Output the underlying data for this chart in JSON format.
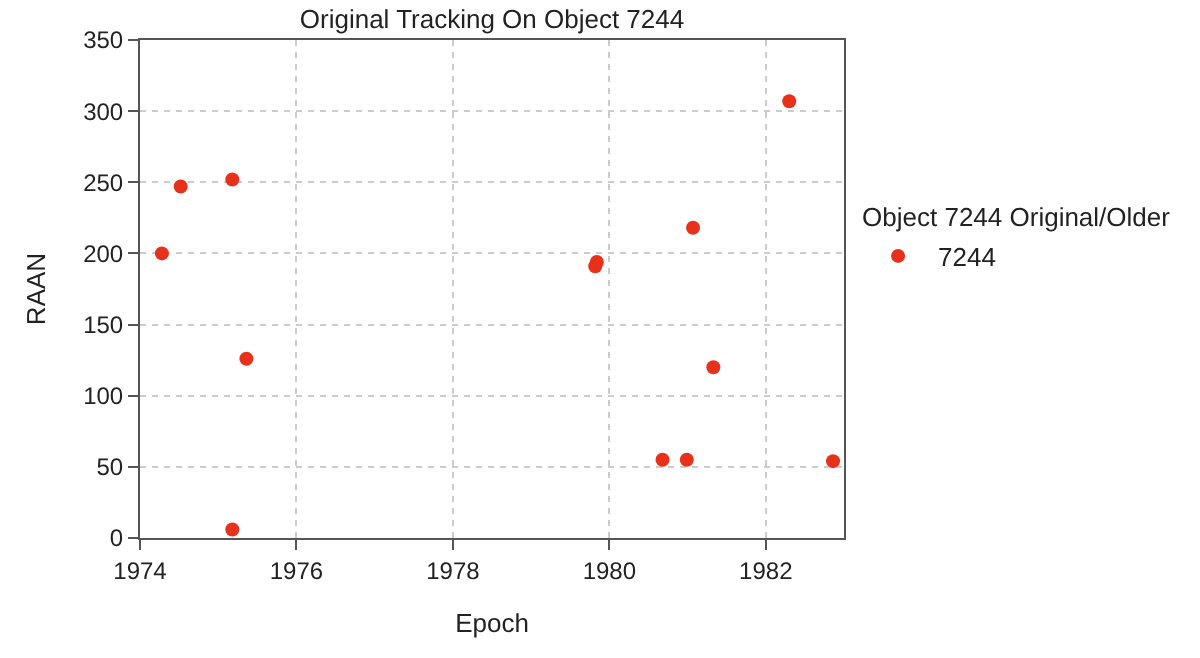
{
  "chart_data": {
    "type": "scatter",
    "title": "Original Tracking On Object 7244",
    "xlabel": "Epoch",
    "ylabel": "RAAN",
    "legend_title": "Object 7244 Original/Older",
    "x": [
      1974.28,
      1974.52,
      1975.18,
      1975.36,
      1975.18,
      1979.82,
      1979.84,
      1980.68,
      1980.99,
      1981.07,
      1981.33,
      1982.3,
      1982.86
    ],
    "series": [
      {
        "name": "7244",
        "color": "#e8311a",
        "values": [
          200,
          247,
          252,
          126,
          6,
          191,
          194,
          55,
          55,
          218,
          120,
          307,
          54
        ]
      }
    ],
    "xlim": [
      1974,
      1983
    ],
    "xticks": [
      1974,
      1976,
      1978,
      1980,
      1982
    ],
    "ylim": [
      0,
      350
    ],
    "yticks": [
      0,
      50,
      100,
      150,
      200,
      250,
      300,
      350
    ],
    "grid": true,
    "legend": "right",
    "marker": "circle"
  }
}
